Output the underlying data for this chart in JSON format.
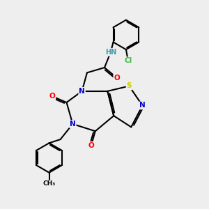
{
  "bg_color": "#eeeeee",
  "atom_colors": {
    "N": "#0000cc",
    "O": "#ff0000",
    "S": "#cccc00",
    "Cl": "#44bb44",
    "C": "#000000",
    "H": "#4499aa"
  },
  "bond_color": "#000000",
  "bond_width": 1.5
}
